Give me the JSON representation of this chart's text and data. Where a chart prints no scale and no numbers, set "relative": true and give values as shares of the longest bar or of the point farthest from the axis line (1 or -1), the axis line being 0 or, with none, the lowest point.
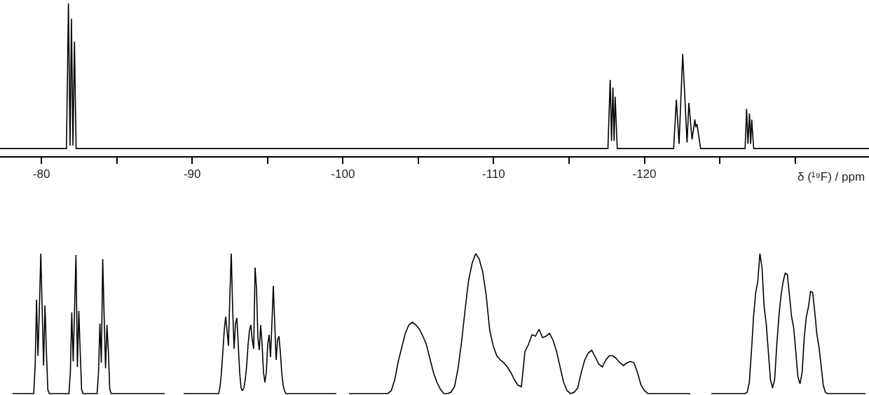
{
  "chart_data": [
    {
      "type": "line",
      "relative": true,
      "color": "#000000",
      "tick_labels": "x",
      "xlabel": "δ (¹⁹F) / ppm",
      "xlim": [
        -77.25,
        -134.9
      ],
      "xticks": [
        -80,
        {
          "value": -85,
          "label": null
        },
        -90,
        {
          "value": -95,
          "label": null
        },
        -100,
        {
          "value": -105,
          "label": null
        },
        -110,
        {
          "value": -115,
          "label": null
        },
        -120,
        {
          "value": -125,
          "label": null
        },
        {
          "value": -130,
          "label": null
        }
      ],
      "x": [
        -77.25,
        -81.66,
        -81.79,
        -81.9,
        -81.99,
        -82.09,
        -82.19,
        -82.3,
        -117.58,
        -117.73,
        -117.82,
        -117.91,
        -117.99,
        -118.06,
        -118.2,
        -121.94,
        -122.12,
        -122.3,
        -122.54,
        -122.83,
        -122.95,
        -123.16,
        -123.35,
        -123.41,
        -123.49,
        -123.73,
        -126.68,
        -126.78,
        -126.87,
        -126.97,
        -127.05,
        -127.12,
        -127.25,
        -134.9
      ],
      "values": [
        0.05,
        0.05,
        1.0,
        0.07,
        0.9,
        0.07,
        0.75,
        0.05,
        0.05,
        0.5,
        0.1,
        0.45,
        0.1,
        0.39,
        0.05,
        0.05,
        0.37,
        0.08,
        0.67,
        0.09,
        0.35,
        0.11,
        0.24,
        0.19,
        0.21,
        0.05,
        0.05,
        0.31,
        0.08,
        0.28,
        0.08,
        0.24,
        0.05,
        0.05
      ]
    },
    {
      "type": "line",
      "relative": true,
      "color": "#000000",
      "tick_labels": false,
      "categories": [
        null,
        null,
        null,
        null,
        null,
        null,
        null,
        null,
        null,
        null,
        null,
        null,
        null,
        null,
        null,
        null,
        null,
        null,
        null,
        null,
        null,
        null,
        null,
        null,
        null,
        null,
        null,
        null,
        null,
        null,
        null,
        null,
        null,
        null,
        null,
        null,
        null,
        null,
        null,
        null,
        null,
        null,
        null,
        null,
        null,
        null,
        null,
        null,
        null,
        null,
        null,
        null,
        null,
        null,
        null,
        null,
        null,
        null,
        null,
        null,
        null,
        null,
        null,
        null,
        null,
        null,
        null,
        null,
        null,
        null,
        null,
        null,
        null,
        null,
        null,
        null,
        null,
        null,
        null,
        null,
        null,
        null,
        null,
        null,
        null,
        null,
        null,
        null,
        null,
        null,
        null,
        null,
        null,
        null,
        null,
        null,
        null,
        null,
        null,
        null,
        null,
        null,
        null,
        null,
        null,
        null,
        null,
        null,
        null
      ],
      "values": [
        0,
        0,
        0,
        0,
        0,
        0,
        0,
        0,
        0,
        0,
        0,
        0,
        0,
        0,
        0,
        0,
        0.2,
        0.67,
        0.27,
        0.6,
        1.0,
        0.6,
        0.2,
        0.63,
        0.3,
        0.03,
        0,
        0,
        0,
        0,
        0,
        0,
        0,
        0,
        0,
        0,
        0,
        0,
        0,
        0,
        0,
        0.15,
        0.58,
        0.23,
        0.6,
        0.99,
        0.19,
        0.59,
        0.3,
        0.03,
        0,
        0,
        0,
        0,
        0,
        0,
        0,
        0,
        0,
        0,
        0,
        0.15,
        0.5,
        0.22,
        0.96,
        0.55,
        0.18,
        0.49,
        0.3,
        0.03,
        0,
        0,
        0,
        0,
        0,
        0,
        0,
        0,
        0,
        0,
        0,
        0,
        0,
        0,
        0,
        0,
        0,
        0,
        0,
        0,
        0,
        0,
        0,
        0,
        0,
        0,
        0,
        0,
        0,
        0,
        0,
        0,
        0,
        0,
        0,
        0,
        0,
        0,
        0
      ]
    },
    {
      "type": "line",
      "relative": true,
      "color": "#000000",
      "tick_labels": false,
      "categories": [
        null,
        null,
        null,
        null,
        null,
        null,
        null,
        null,
        null,
        null,
        null,
        null,
        null,
        null,
        null,
        null,
        null,
        null,
        null,
        null,
        null,
        null,
        null,
        null,
        null,
        null,
        null,
        null,
        null,
        null,
        null,
        null,
        null,
        null,
        null,
        null,
        null,
        null,
        null,
        null,
        null,
        null,
        null,
        null,
        null,
        null,
        null,
        null,
        null,
        null,
        null,
        null,
        null,
        null,
        null,
        null,
        null,
        null,
        null,
        null,
        null,
        null,
        null,
        null,
        null,
        null,
        null,
        null,
        null,
        null,
        null,
        null,
        null,
        null,
        null,
        null,
        null,
        null,
        null,
        null,
        null,
        null,
        null,
        null,
        null,
        null,
        null,
        null,
        null,
        null,
        null,
        null,
        null,
        null,
        null,
        null,
        null,
        null,
        null,
        null,
        null,
        null,
        null,
        null,
        null,
        null,
        null,
        null,
        null,
        null
      ],
      "values": [
        0,
        0,
        0,
        0,
        0,
        0,
        0,
        0,
        0,
        0,
        0,
        0,
        0,
        0,
        0,
        0,
        0,
        0,
        0,
        0,
        0,
        0,
        0,
        0,
        0,
        0,
        0.05,
        0.15,
        0.3,
        0.45,
        0.55,
        0.45,
        0.34,
        0.7,
        1.0,
        0.6,
        0.32,
        0.5,
        0.54,
        0.35,
        0.15,
        0.04,
        0.02,
        0.04,
        0.1,
        0.2,
        0.35,
        0.45,
        0.49,
        0.38,
        0.32,
        0.9,
        0.75,
        0.4,
        0.31,
        0.49,
        0.35,
        0.15,
        0.08,
        0.15,
        0.35,
        0.42,
        0.26,
        0.5,
        0.77,
        0.5,
        0.24,
        0.38,
        0.41,
        0.3,
        0.15,
        0.06,
        0.02,
        0,
        0,
        0,
        0,
        0,
        0,
        0,
        0,
        0,
        0,
        0,
        0,
        0,
        0,
        0,
        0,
        0,
        0,
        0,
        0,
        0,
        0,
        0,
        0,
        0,
        0,
        0,
        0,
        0,
        0,
        0,
        0,
        0,
        0,
        0,
        0,
        0
      ]
    },
    {
      "type": "line",
      "relative": true,
      "color": "#000000",
      "tick_labels": false,
      "categories": [
        null,
        null,
        null,
        null,
        null,
        null,
        null,
        null,
        null,
        null,
        null,
        null,
        null,
        null,
        null,
        null,
        null,
        null,
        null,
        null,
        null,
        null,
        null,
        null,
        null,
        null,
        null,
        null,
        null,
        null,
        null,
        null,
        null,
        null,
        null,
        null,
        null,
        null,
        null,
        null,
        null,
        null,
        null,
        null,
        null,
        null,
        null,
        null,
        null,
        null,
        null,
        null,
        null,
        null,
        null,
        null,
        null,
        null,
        null,
        null,
        null,
        null,
        null,
        null,
        null,
        null,
        null,
        null,
        null,
        null,
        null,
        null,
        null,
        null,
        null,
        null,
        null,
        null,
        null,
        null,
        null,
        null,
        null,
        null,
        null,
        null,
        null,
        null,
        null,
        null,
        null,
        null,
        null,
        null,
        null,
        null,
        null,
        null
      ],
      "values": [
        0,
        0,
        0,
        0,
        0,
        0,
        0,
        0,
        0,
        0,
        0,
        0,
        0.02,
        0.1,
        0.23,
        0.33,
        0.43,
        0.49,
        0.51,
        0.49,
        0.46,
        0.41,
        0.35,
        0.25,
        0.15,
        0.08,
        0.03,
        0,
        0,
        0.01,
        0.05,
        0.18,
        0.37,
        0.6,
        0.81,
        0.93,
        1.0,
        0.96,
        0.87,
        0.7,
        0.45,
        0.34,
        0.27,
        0.24,
        0.22,
        0.19,
        0.15,
        0.1,
        0.06,
        0.05,
        0.3,
        0.35,
        0.42,
        0.41,
        0.46,
        0.4,
        0.41,
        0.43,
        0.38,
        0.3,
        0.19,
        0.08,
        0.02,
        0,
        0.01,
        0.04,
        0.15,
        0.24,
        0.29,
        0.31,
        0.26,
        0.21,
        0.19,
        0.24,
        0.27,
        0.27,
        0.25,
        0.22,
        0.2,
        0.22,
        0.23,
        0.22,
        0.15,
        0.06,
        0.02,
        0,
        0,
        0,
        0,
        0,
        0,
        0,
        0,
        0,
        0,
        0,
        0,
        0
      ]
    },
    {
      "type": "line",
      "relative": true,
      "color": "#000000",
      "tick_labels": false,
      "categories": [
        null,
        null,
        null,
        null,
        null,
        null,
        null,
        null,
        null,
        null,
        null,
        null,
        null,
        null,
        null,
        null,
        null,
        null,
        null,
        null,
        null,
        null,
        null,
        null,
        null,
        null,
        null,
        null,
        null,
        null,
        null,
        null,
        null,
        null,
        null,
        null,
        null,
        null,
        null,
        null,
        null,
        null,
        null,
        null,
        null,
        null,
        null,
        null,
        null,
        null,
        null,
        null,
        null,
        null,
        null,
        null,
        null,
        null,
        null,
        null,
        null,
        null,
        null,
        null,
        null,
        null,
        null,
        null,
        null,
        null,
        null,
        null,
        null,
        null
      ],
      "values": [
        0,
        0,
        0,
        0,
        0,
        0,
        0,
        0,
        0,
        0,
        0,
        0,
        0,
        0,
        0,
        0,
        0,
        0.01,
        0.08,
        0.3,
        0.55,
        0.72,
        0.8,
        1.0,
        0.9,
        0.62,
        0.5,
        0.3,
        0.1,
        0.04,
        0.1,
        0.35,
        0.55,
        0.7,
        0.8,
        0.86,
        0.85,
        0.7,
        0.55,
        0.47,
        0.3,
        0.12,
        0.07,
        0.15,
        0.4,
        0.55,
        0.62,
        0.73,
        0.72,
        0.58,
        0.42,
        0.33,
        0.2,
        0.06,
        0.01,
        0,
        0,
        0,
        0,
        0,
        0,
        0,
        0,
        0,
        0,
        0,
        0,
        0,
        0,
        0,
        0,
        0,
        0,
        0
      ]
    }
  ]
}
